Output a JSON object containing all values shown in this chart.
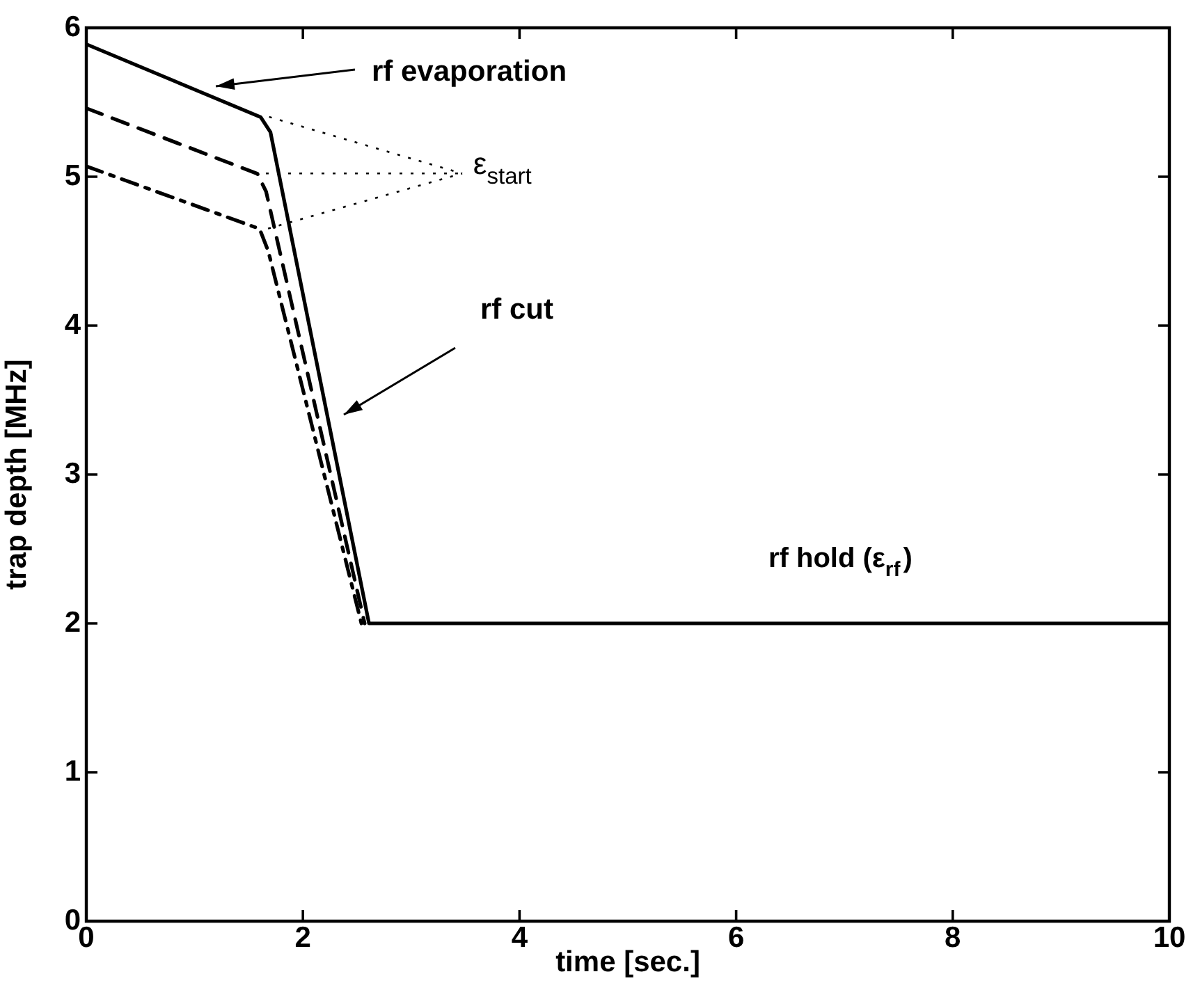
{
  "chart_data": {
    "type": "line",
    "xlabel": "time [sec.]",
    "ylabel": "trap depth [MHz]",
    "xlim": [
      0,
      10
    ],
    "ylim": [
      0,
      6
    ],
    "xticks": [
      0,
      2,
      4,
      6,
      8,
      10
    ],
    "yticks": [
      0,
      1,
      2,
      3,
      4,
      5,
      6
    ],
    "grid": false,
    "legend": false,
    "marker": "none",
    "series": [
      {
        "color": "#000000",
        "line_style": "solid",
        "x": [
          0,
          1.61,
          1.7,
          2.61,
          10
        ],
        "values": [
          5.89,
          5.4,
          5.3,
          2.0,
          2.0
        ]
      },
      {
        "color": "#000000",
        "line_style": "dashed",
        "x": [
          0,
          1.58,
          1.66,
          2.57
        ],
        "values": [
          5.46,
          5.02,
          4.9,
          2.0
        ]
      },
      {
        "color": "#000000",
        "line_style": "dash-dot",
        "x": [
          0,
          1.6,
          1.68,
          2.54
        ],
        "values": [
          5.07,
          4.65,
          4.5,
          2.0
        ]
      }
    ],
    "annotations": [
      "rf evaporation",
      "rf cut",
      {
        "text": "ε$_{start}$",
        "x": 1.58,
        "y": 5.02
      },
      "rf hold (ε$_{rf}$)"
    ]
  }
}
